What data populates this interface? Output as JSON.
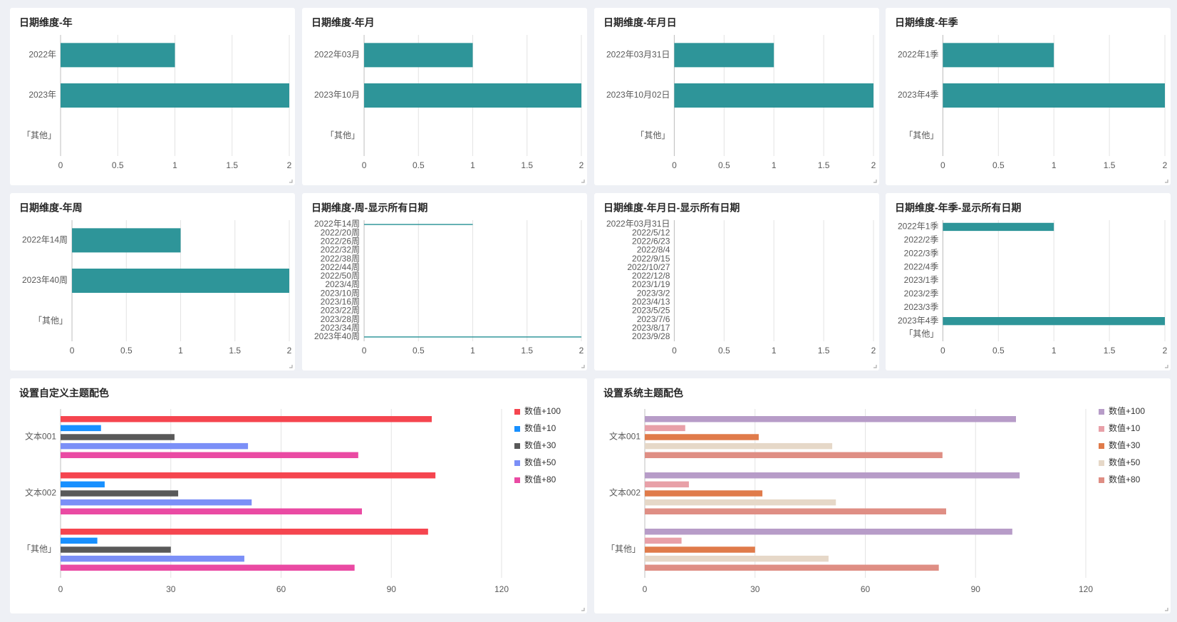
{
  "chart_data": [
    {
      "type": "bar",
      "title": "日期维度-年",
      "categories": [
        "2022年",
        "2023年",
        "「其他」"
      ],
      "values": [
        1,
        2,
        null
      ],
      "color": "#2e9599",
      "xlim": [
        0,
        2
      ],
      "xticks": [
        0,
        0.5,
        1,
        1.5,
        2
      ],
      "grid": true
    },
    {
      "type": "bar",
      "title": "日期维度-年月",
      "categories": [
        "2022年03月",
        "2023年10月",
        "「其他」"
      ],
      "values": [
        1,
        2,
        null
      ],
      "color": "#2e9599",
      "xlim": [
        0,
        2
      ],
      "xticks": [
        0,
        0.5,
        1,
        1.5,
        2
      ],
      "grid": true
    },
    {
      "type": "bar",
      "title": "日期维度-年月日",
      "categories": [
        "2022年03月31日",
        "2023年10月02日",
        "「其他」"
      ],
      "values": [
        1,
        2,
        null
      ],
      "color": "#2e9599",
      "xlim": [
        0,
        2
      ],
      "xticks": [
        0,
        0.5,
        1,
        1.5,
        2
      ],
      "grid": true
    },
    {
      "type": "bar",
      "title": "日期维度-年季",
      "categories": [
        "2022年1季",
        "2023年4季",
        "「其他」"
      ],
      "values": [
        1,
        2,
        null
      ],
      "color": "#2e9599",
      "xlim": [
        0,
        2
      ],
      "xticks": [
        0,
        0.5,
        1,
        1.5,
        2
      ],
      "grid": true
    },
    {
      "type": "bar",
      "title": "日期维度-年周",
      "categories": [
        "2022年14周",
        "2023年40周",
        "「其他」"
      ],
      "values": [
        1,
        2,
        null
      ],
      "color": "#2e9599",
      "xlim": [
        0,
        2
      ],
      "xticks": [
        0,
        0.5,
        1,
        1.5,
        2
      ],
      "grid": true
    },
    {
      "type": "bar",
      "title": "日期维度-周-显示所有日期",
      "categories": [
        "2022年14周",
        "2022/20周",
        "2022/26周",
        "2022/32周",
        "2022/38周",
        "2022/44周",
        "2022/50周",
        "2023/4周",
        "2023/10周",
        "2023/16周",
        "2023/22周",
        "2023/28周",
        "2023/34周",
        "2023年40周"
      ],
      "values": [
        1,
        null,
        null,
        null,
        null,
        null,
        null,
        null,
        null,
        null,
        null,
        null,
        null,
        2
      ],
      "color": "#2e9599",
      "xlim": [
        0,
        2
      ],
      "xticks": [
        0,
        0.5,
        1,
        1.5,
        2
      ],
      "grid": true
    },
    {
      "type": "bar",
      "title": "日期维度-年月日-显示所有日期",
      "categories": [
        "2022年03月31日",
        "2022/5/12",
        "2022/6/23",
        "2022/8/4",
        "2022/9/15",
        "2022/10/27",
        "2022/12/8",
        "2023/1/19",
        "2023/3/2",
        "2023/4/13",
        "2023/5/25",
        "2023/7/6",
        "2023/8/17",
        "2023/9/28"
      ],
      "values": [
        null,
        null,
        null,
        null,
        null,
        null,
        null,
        null,
        null,
        null,
        null,
        null,
        null,
        null
      ],
      "color": "#2e9599",
      "xlim": [
        0,
        2
      ],
      "xticks": [
        0,
        0.5,
        1,
        1.5,
        2
      ],
      "grid": true
    },
    {
      "type": "bar",
      "title": "日期维度-年季-显示所有日期",
      "categories": [
        "2022年1季",
        "2022/2季",
        "2022/3季",
        "2022/4季",
        "2023/1季",
        "2023/2季",
        "2023/3季",
        "2023年4季",
        "「其他」"
      ],
      "values": [
        1,
        null,
        null,
        null,
        null,
        null,
        null,
        2,
        null
      ],
      "color": "#2e9599",
      "xlim": [
        0,
        2
      ],
      "xticks": [
        0,
        0.5,
        1,
        1.5,
        2
      ],
      "grid": true
    },
    {
      "type": "bar",
      "title": "设置自定义主题配色",
      "categories": [
        "文本001",
        "文本002",
        "「其他」"
      ],
      "series": [
        {
          "name": "数值+100",
          "color": "#f5454f",
          "values": [
            101,
            102,
            100
          ]
        },
        {
          "name": "数值+10",
          "color": "#1890ff",
          "values": [
            11,
            12,
            10
          ]
        },
        {
          "name": "数值+30",
          "color": "#595959",
          "values": [
            31,
            32,
            30
          ]
        },
        {
          "name": "数值+50",
          "color": "#7b8ff7",
          "values": [
            51,
            52,
            50
          ]
        },
        {
          "name": "数值+80",
          "color": "#ea4aa3",
          "values": [
            81,
            82,
            80
          ]
        }
      ],
      "xlim": [
        0,
        120
      ],
      "xticks": [
        0,
        30,
        60,
        90,
        120
      ],
      "grid": true,
      "legend": "right"
    },
    {
      "type": "bar",
      "title": "设置系统主题配色",
      "categories": [
        "文本001",
        "文本002",
        "「其他」"
      ],
      "series": [
        {
          "name": "数值+100",
          "color": "#b79cc8",
          "values": [
            101,
            102,
            100
          ]
        },
        {
          "name": "数值+10",
          "color": "#e8a0a8",
          "values": [
            11,
            12,
            10
          ]
        },
        {
          "name": "数值+30",
          "color": "#e07b4a",
          "values": [
            31,
            32,
            30
          ]
        },
        {
          "name": "数值+50",
          "color": "#e6d8c8",
          "values": [
            51,
            52,
            50
          ]
        },
        {
          "name": "数值+80",
          "color": "#df8e84",
          "values": [
            81,
            82,
            80
          ]
        }
      ],
      "xlim": [
        0,
        120
      ],
      "xticks": [
        0,
        30,
        60,
        90,
        120
      ],
      "grid": true,
      "legend": "right"
    }
  ]
}
